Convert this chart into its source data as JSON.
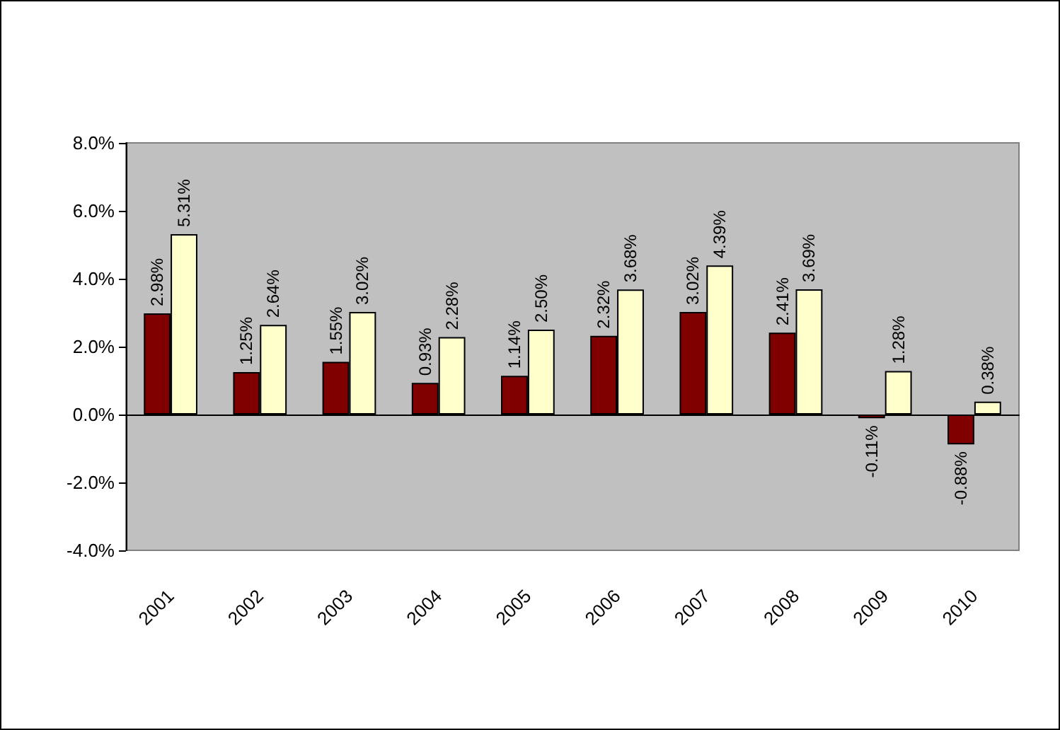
{
  "chart_data": {
    "type": "bar",
    "categories": [
      "2001",
      "2002",
      "2003",
      "2004",
      "2005",
      "2006",
      "2007",
      "2008",
      "2009",
      "2010"
    ],
    "series": [
      {
        "color": "#800000",
        "values": [
          2.98,
          1.25,
          1.55,
          0.93,
          1.14,
          2.32,
          3.02,
          2.41,
          -0.11,
          -0.88
        ],
        "value_labels": [
          "2.98%",
          "1.25%",
          "1.55%",
          "0.93%",
          "1.14%",
          "2.32%",
          "3.02%",
          "2.41%",
          "-0.11%",
          "-0.88%"
        ]
      },
      {
        "color": "#ffffcc",
        "values": [
          5.31,
          2.64,
          3.02,
          2.28,
          2.5,
          3.68,
          4.39,
          3.69,
          1.28,
          0.38
        ],
        "value_labels": [
          "5.31%",
          "2.64%",
          "3.02%",
          "2.28%",
          "2.50%",
          "3.68%",
          "4.39%",
          "3.69%",
          "1.28%",
          "0.38%"
        ]
      }
    ],
    "ylim": [
      -4,
      8
    ],
    "yticks": [
      {
        "value": -4,
        "label": "-4.0%"
      },
      {
        "value": -2,
        "label": "-2.0%"
      },
      {
        "value": 0,
        "label": "0.0%"
      },
      {
        "value": 2,
        "label": "2.0%"
      },
      {
        "value": 4,
        "label": "4.0%"
      },
      {
        "value": 6,
        "label": "6.0%"
      },
      {
        "value": 8,
        "label": "8.0%"
      }
    ],
    "legend": false
  }
}
